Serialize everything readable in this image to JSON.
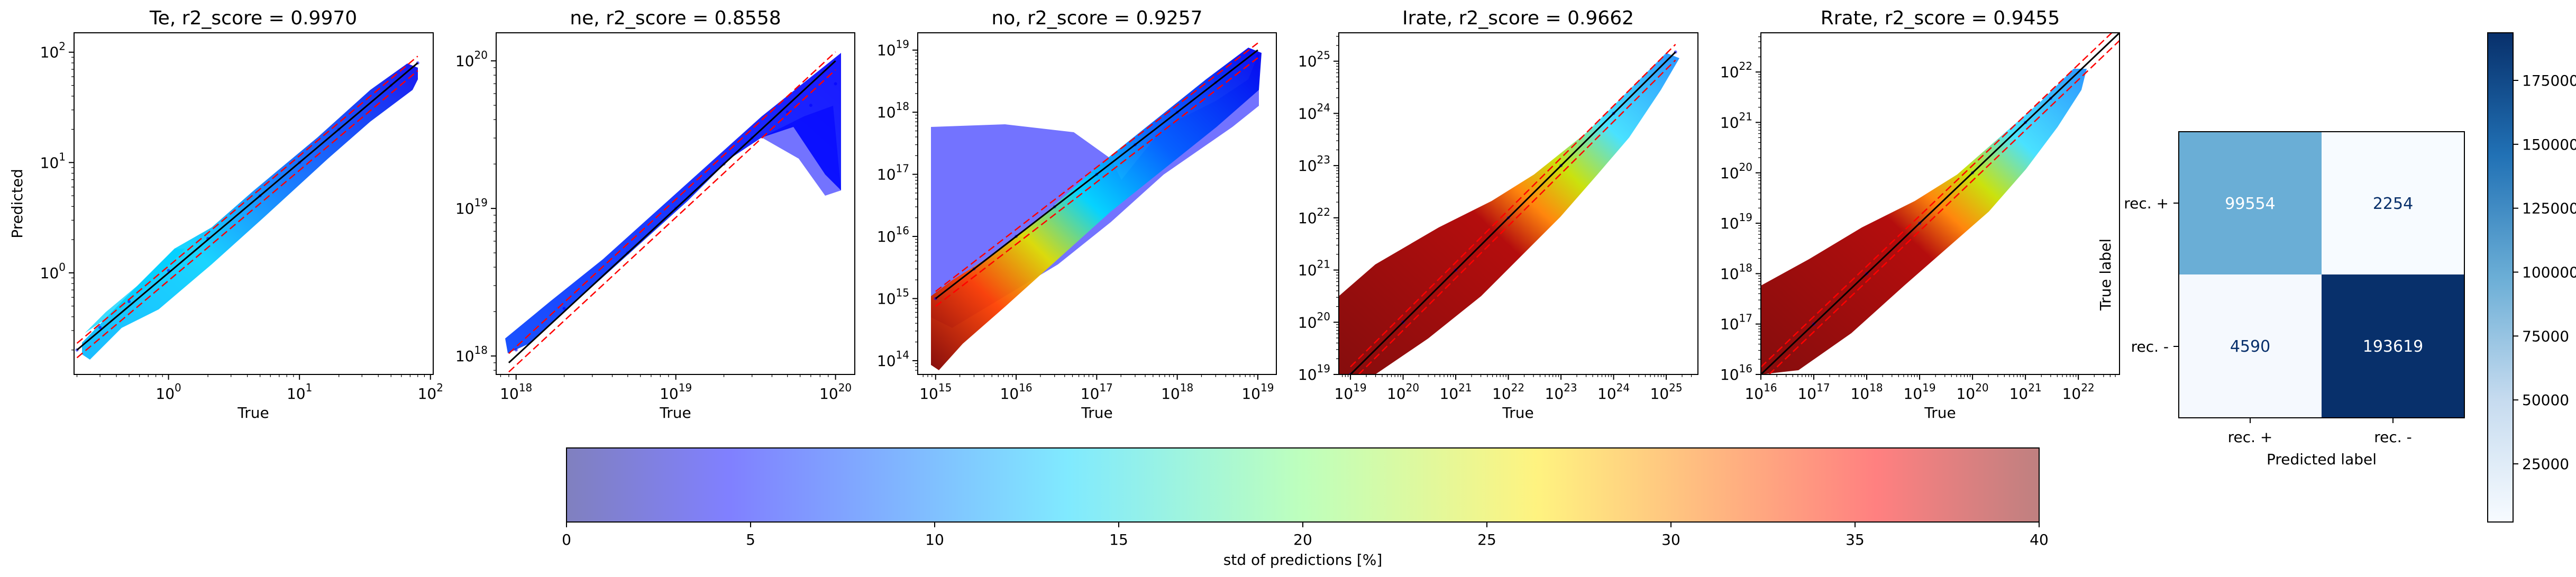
{
  "chart_data": [
    {
      "type": "scatter",
      "title": "Te, r2_score = 0.9970",
      "xlabel": "True",
      "ylabel": "Predicted",
      "xscale": "log",
      "yscale": "log",
      "xlim": [
        0.19,
        105
      ],
      "ylim": [
        0.12,
        150
      ],
      "x_ticks": [
        {
          "e": 0,
          "label": "10",
          "sup": "0"
        },
        {
          "e": 1,
          "label": "10",
          "sup": "1"
        },
        {
          "e": 2,
          "label": "10",
          "sup": "2"
        }
      ],
      "y_ticks": [
        {
          "e": 0,
          "label": "10",
          "sup": "0"
        },
        {
          "e": 1,
          "label": "10",
          "sup": "1"
        },
        {
          "e": 2,
          "label": "10",
          "sup": "2"
        }
      ],
      "series": [
        {
          "role": "points",
          "x": [
            0.2,
            0.3,
            0.5,
            1,
            2,
            5,
            10,
            20,
            50,
            80
          ],
          "y": [
            0.2,
            0.32,
            0.55,
            1.05,
            2.05,
            5,
            10,
            20,
            50,
            80
          ]
        },
        {
          "role": "identity",
          "x": [
            0.2,
            80
          ],
          "y": [
            0.2,
            80
          ],
          "color": "#000000"
        },
        {
          "role": "bound",
          "x": [
            0.2,
            80
          ],
          "y": [
            0.23,
            92
          ],
          "color": "#ff0000"
        },
        {
          "role": "bound",
          "x": [
            0.2,
            80
          ],
          "y": [
            0.17,
            68
          ],
          "color": "#ff0000"
        }
      ]
    },
    {
      "type": "scatter",
      "title": "ne, r2_score = 0.8558",
      "xlabel": "True",
      "ylabel": "",
      "xscale": "log",
      "yscale": "log",
      "xlim": [
        7.5e+17,
        1.32e+20
      ],
      "ylim": [
        7.5e+17,
        1.55e+20
      ],
      "x_ticks": [
        {
          "e": 18,
          "label": "10",
          "sup": "18"
        },
        {
          "e": 19,
          "label": "10",
          "sup": "19"
        },
        {
          "e": 20,
          "label": "10",
          "sup": "20"
        }
      ],
      "y_ticks": [
        {
          "e": 18,
          "label": "10",
          "sup": "18"
        },
        {
          "e": 19,
          "label": "10",
          "sup": "19"
        },
        {
          "e": 20,
          "label": "10",
          "sup": "20"
        }
      ],
      "series": [
        {
          "role": "points",
          "x": [
            1e+18,
            2e+18,
            5e+18,
            1e+19,
            2e+19,
            3e+19,
            5e+19,
            7e+19,
            1e+20
          ],
          "y": [
            1.1e+18,
            2.1e+18,
            5e+18,
            1e+19,
            2e+19,
            3e+19,
            4.5e+19,
            5e+19,
            7e+19
          ]
        },
        {
          "role": "identity",
          "x": [
            9e+17,
            1e+20
          ],
          "y": [
            9e+17,
            1e+20
          ],
          "color": "#000000"
        },
        {
          "role": "bound",
          "x": [
            9e+17,
            1e+20
          ],
          "y": [
            1.04e+18,
            1.15e+20
          ],
          "color": "#ff0000"
        },
        {
          "role": "bound",
          "x": [
            9e+17,
            1e+20
          ],
          "y": [
            7.8e+17,
            8.7e+19
          ],
          "color": "#ff0000"
        }
      ]
    },
    {
      "type": "scatter",
      "title": "no, r2_score = 0.9257",
      "xlabel": "True",
      "ylabel": "",
      "xscale": "log",
      "yscale": "log",
      "xlim": [
        600000000000000.0,
        1.7e+19
      ],
      "ylim": [
        60000000000000.0,
        1.9e+19
      ],
      "x_ticks": [
        {
          "e": 15,
          "label": "10",
          "sup": "15"
        },
        {
          "e": 16,
          "label": "10",
          "sup": "16"
        },
        {
          "e": 17,
          "label": "10",
          "sup": "17"
        },
        {
          "e": 18,
          "label": "10",
          "sup": "18"
        },
        {
          "e": 19,
          "label": "10",
          "sup": "19"
        }
      ],
      "y_ticks": [
        {
          "e": 14,
          "label": "10",
          "sup": "14"
        },
        {
          "e": 15,
          "label": "10",
          "sup": "15"
        },
        {
          "e": 16,
          "label": "10",
          "sup": "16"
        },
        {
          "e": 17,
          "label": "10",
          "sup": "17"
        },
        {
          "e": 18,
          "label": "10",
          "sup": "18"
        },
        {
          "e": 19,
          "label": "10",
          "sup": "19"
        }
      ],
      "series": [
        {
          "role": "points",
          "x": [
            1000000000000000.0,
            3000000000000000.0,
            1e+16,
            3e+16,
            1e+17,
            3e+17,
            1e+18,
            3e+18,
            1e+19
          ],
          "y": [
            1000000000000000.0,
            3000000000000000.0,
            1e+16,
            3e+16,
            1e+17,
            3e+17,
            1e+18,
            3e+18,
            8e+18
          ]
        },
        {
          "role": "identity",
          "x": [
            1000000000000000.0,
            1e+19
          ],
          "y": [
            1000000000000000.0,
            1e+19
          ],
          "color": "#000000"
        },
        {
          "role": "bound",
          "x": [
            1000000000000000.0,
            1e+19
          ],
          "y": [
            1300000000000000.0,
            1.3e+19
          ],
          "color": "#ff0000"
        },
        {
          "role": "bound",
          "x": [
            1000000000000000.0,
            1e+19
          ],
          "y": [
            750000000000000.0,
            7.5e+18
          ],
          "color": "#ff0000"
        }
      ]
    },
    {
      "type": "scatter",
      "title": "Irate, r2_score = 0.9662",
      "xlabel": "True",
      "ylabel": "",
      "xscale": "log",
      "yscale": "log",
      "xlim": [
        6e+18,
        4e+25
      ],
      "ylim": [
        1e+19,
        3.5e+25
      ],
      "x_ticks": [
        {
          "e": 19,
          "label": "10",
          "sup": "19"
        },
        {
          "e": 20,
          "label": "10",
          "sup": "20"
        },
        {
          "e": 21,
          "label": "10",
          "sup": "21"
        },
        {
          "e": 22,
          "label": "10",
          "sup": "22"
        },
        {
          "e": 23,
          "label": "10",
          "sup": "23"
        },
        {
          "e": 24,
          "label": "10",
          "sup": "24"
        },
        {
          "e": 25,
          "label": "10",
          "sup": "25"
        }
      ],
      "y_ticks": [
        {
          "e": 19,
          "label": "10",
          "sup": "19"
        },
        {
          "e": 20,
          "label": "10",
          "sup": "20"
        },
        {
          "e": 21,
          "label": "10",
          "sup": "21"
        },
        {
          "e": 22,
          "label": "10",
          "sup": "22"
        },
        {
          "e": 23,
          "label": "10",
          "sup": "23"
        },
        {
          "e": 24,
          "label": "10",
          "sup": "24"
        },
        {
          "e": 25,
          "label": "10",
          "sup": "25"
        }
      ],
      "series": [
        {
          "role": "points",
          "x": [
            1e+19,
            1e+20,
            1e+21,
            1e+22,
            1e+23,
            1e+24,
            1.5e+25
          ],
          "y": [
            1e+19,
            1e+20,
            1e+21,
            1e+22,
            1e+23,
            1e+24,
            1.5e+25
          ]
        },
        {
          "role": "identity",
          "x": [
            1e+19,
            1.5e+25
          ],
          "y": [
            1e+19,
            1.5e+25
          ],
          "color": "#000000"
        },
        {
          "role": "bound",
          "x": [
            1e+19,
            1.5e+25
          ],
          "y": [
            1.4e+19,
            2.1e+25
          ],
          "color": "#ff0000"
        },
        {
          "role": "bound",
          "x": [
            1e+19,
            1.5e+25
          ],
          "y": [
            7e+18,
            1.05e+25
          ],
          "color": "#ff0000"
        }
      ]
    },
    {
      "type": "scatter",
      "title": "Rrate, r2_score = 0.9455",
      "xlabel": "True",
      "ylabel": "",
      "xscale": "log",
      "yscale": "log",
      "xlim": [
        1e+16,
        6e+22
      ],
      "ylim": [
        1e+16,
        6e+22
      ],
      "x_ticks": [
        {
          "e": 16,
          "label": "10",
          "sup": "16"
        },
        {
          "e": 17,
          "label": "10",
          "sup": "17"
        },
        {
          "e": 18,
          "label": "10",
          "sup": "18"
        },
        {
          "e": 19,
          "label": "10",
          "sup": "19"
        },
        {
          "e": 20,
          "label": "10",
          "sup": "20"
        },
        {
          "e": 21,
          "label": "10",
          "sup": "21"
        },
        {
          "e": 22,
          "label": "10",
          "sup": "22"
        }
      ],
      "y_ticks": [
        {
          "e": 16,
          "label": "10",
          "sup": "16"
        },
        {
          "e": 17,
          "label": "10",
          "sup": "17"
        },
        {
          "e": 18,
          "label": "10",
          "sup": "18"
        },
        {
          "e": 19,
          "label": "10",
          "sup": "19"
        },
        {
          "e": 20,
          "label": "10",
          "sup": "20"
        },
        {
          "e": 21,
          "label": "10",
          "sup": "21"
        },
        {
          "e": 22,
          "label": "10",
          "sup": "22"
        }
      ],
      "series": [
        {
          "role": "points",
          "x": [
            1e+16,
            1e+17,
            1e+18,
            1e+19,
            1e+20,
            1e+21,
            3e+21
          ],
          "y": [
            1e+16,
            1e+17,
            1e+18,
            1e+19,
            1e+20,
            1e+21,
            3e+21
          ]
        },
        {
          "role": "identity",
          "x": [
            1e+16,
            6e+22
          ],
          "y": [
            1e+16,
            6e+22
          ],
          "color": "#000000"
        },
        {
          "role": "bound",
          "x": [
            1e+16,
            6e+22
          ],
          "y": [
            1.4e+16,
            8.4e+22
          ],
          "color": "#ff0000"
        },
        {
          "role": "bound",
          "x": [
            1e+16,
            6e+22
          ],
          "y": [
            7000000000000000.0,
            4.2e+22
          ],
          "color": "#ff0000"
        }
      ]
    },
    {
      "type": "heatmap",
      "title": "",
      "xlabel": "Predicted label",
      "ylabel": "True label",
      "x_categories": [
        "rec. +",
        "rec. -"
      ],
      "y_categories": [
        "rec. +",
        "rec. -"
      ],
      "values": [
        [
          99554,
          2254
        ],
        [
          4590,
          193619
        ]
      ],
      "colormap": "Blues",
      "color_range": [
        2254,
        193619
      ],
      "colorbar_ticks": [
        25000,
        50000,
        75000,
        100000,
        125000,
        150000,
        175000
      ]
    },
    {
      "type": "colorbar",
      "title": "",
      "xlabel": "std of predictions [%]",
      "range": [
        0,
        40
      ],
      "ticks": [
        0,
        5,
        10,
        15,
        20,
        25,
        30,
        35,
        40
      ],
      "colormap": "jet",
      "alpha": 0.5
    }
  ]
}
